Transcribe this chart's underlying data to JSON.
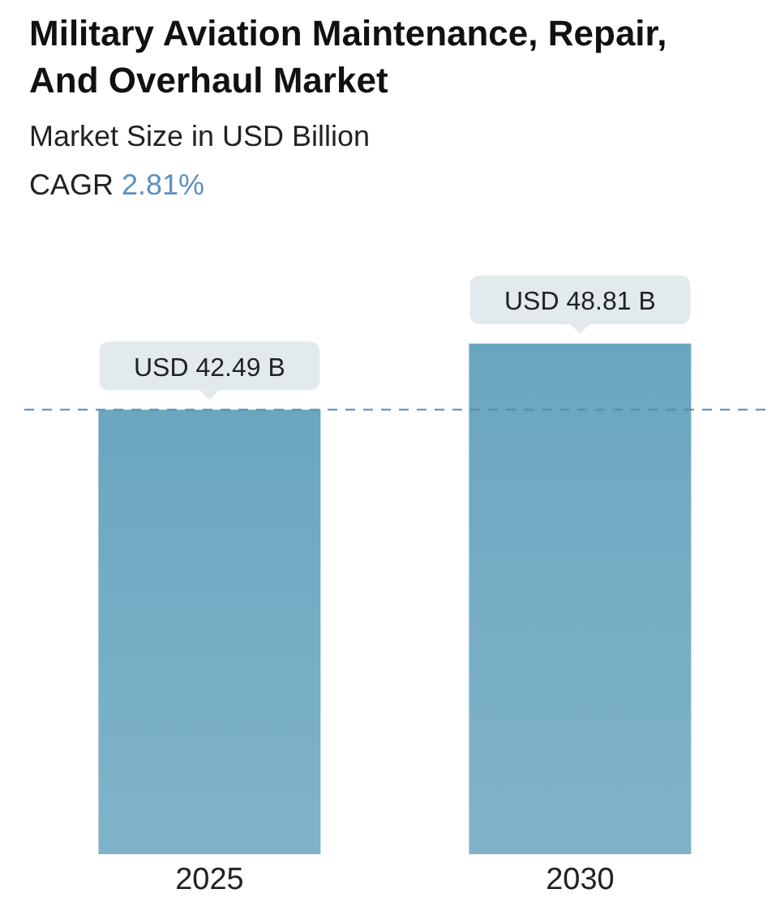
{
  "chart_data": {
    "type": "bar",
    "title": "Military Aviation Maintenance, Repair, And Overhaul Market",
    "subtitle": "Market Size in USD Billion",
    "annotations": [
      "CAGR 2.81%"
    ],
    "categories": [
      "2025",
      "2030"
    ],
    "values": [
      42.49,
      48.81
    ],
    "value_labels": [
      "USD 42.49 B",
      "USD 48.81 B"
    ],
    "color": "#6aa6c0",
    "tick_labels": "x",
    "ref_lines": [
      {
        "axis": "y",
        "value": 42.49,
        "color": "#5b87b0",
        "line_style": "dashed"
      }
    ],
    "grid": false,
    "legend": false
  }
}
